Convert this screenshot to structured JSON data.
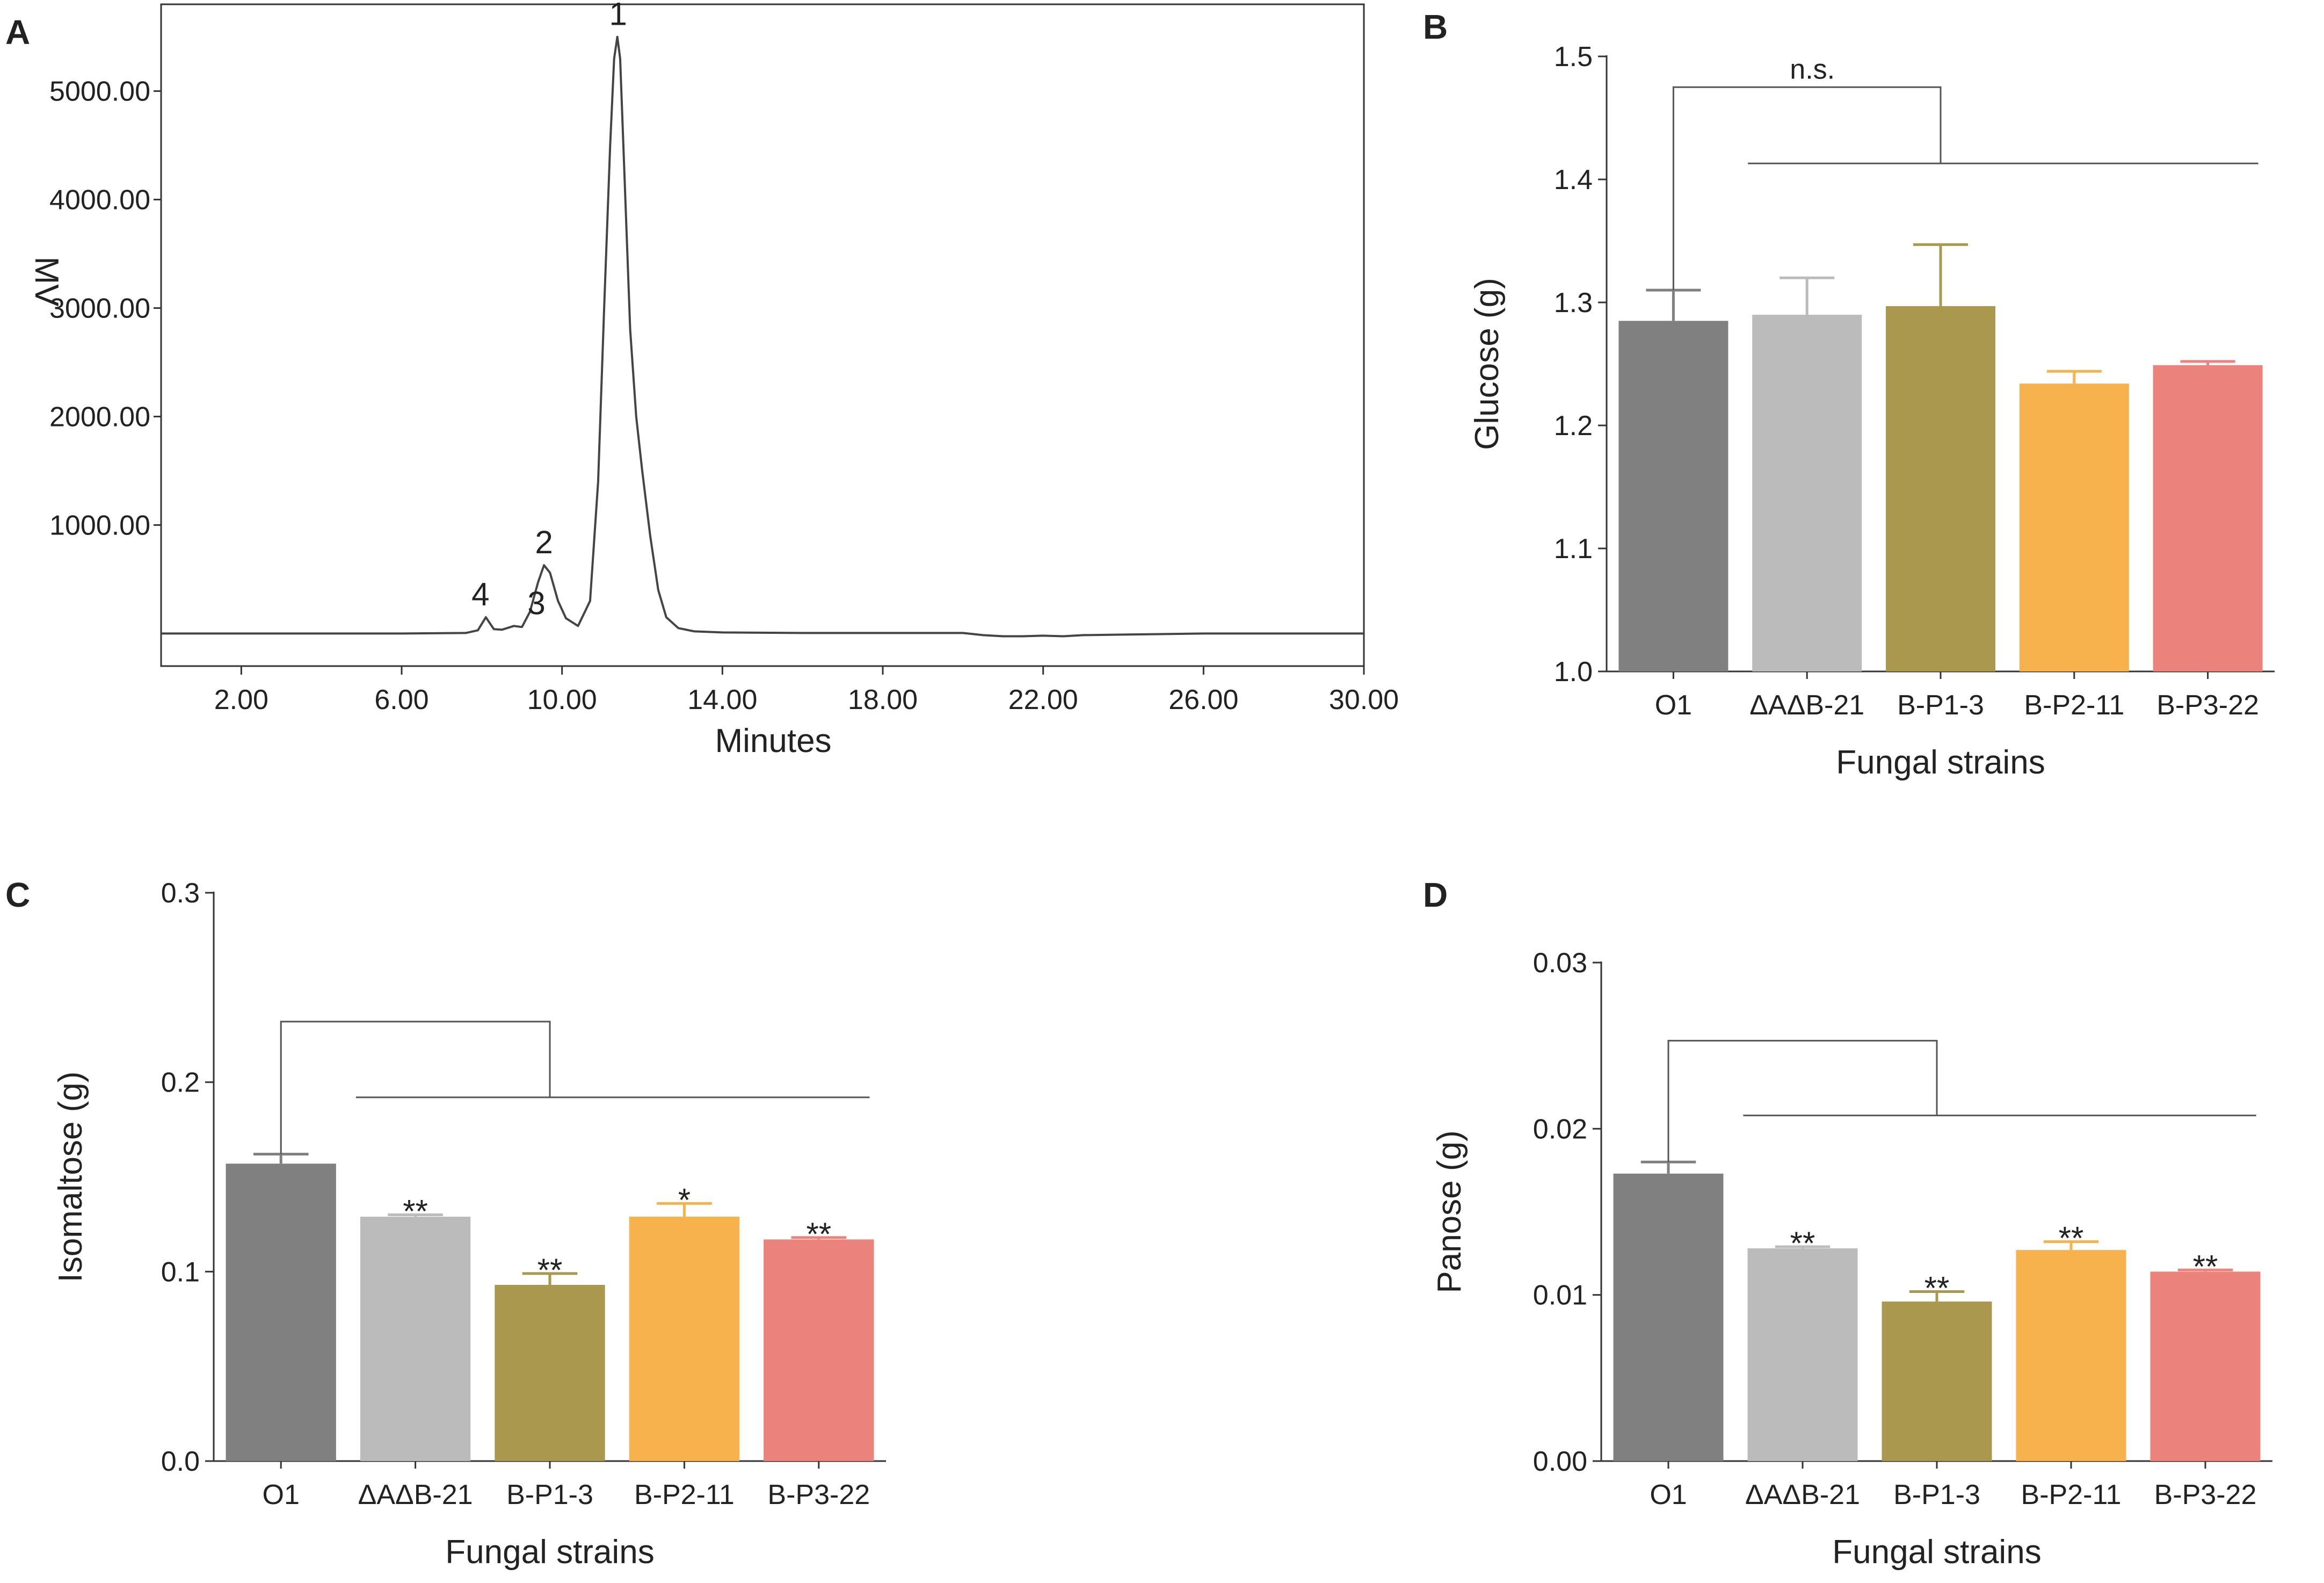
{
  "panel_labels": {
    "a": "A",
    "b": "B",
    "c": "C",
    "d": "D"
  },
  "colors": {
    "axis": "#333333",
    "trace": "#444444",
    "annotation": "#555555"
  },
  "chart_data": [
    {
      "panel": "A",
      "type": "line",
      "title": "",
      "xlabel": "Minutes",
      "ylabel": "MV",
      "xlim": [
        0,
        30
      ],
      "ylim": [
        -300,
        5800
      ],
      "xticks": [
        "2.00",
        "6.00",
        "10.00",
        "14.00",
        "18.00",
        "22.00",
        "26.00",
        "30.00"
      ],
      "xtick_values": [
        2,
        6,
        10,
        14,
        18,
        22,
        26,
        30
      ],
      "yticks": [
        "1000.00",
        "2000.00",
        "3000.00",
        "4000.00",
        "5000.00"
      ],
      "ytick_values": [
        1000,
        2000,
        3000,
        4000,
        5000
      ],
      "series": [
        {
          "name": "chromatogram",
          "x": [
            0.0,
            6.0,
            7.6,
            7.9,
            8.1,
            8.3,
            8.5,
            8.8,
            9.0,
            9.2,
            9.4,
            9.55,
            9.7,
            9.9,
            10.1,
            10.4,
            10.7,
            10.9,
            11.05,
            11.2,
            11.3,
            11.38,
            11.45,
            11.55,
            11.7,
            11.85,
            12.0,
            12.2,
            12.4,
            12.6,
            12.9,
            13.3,
            14.0,
            16.0,
            18.0,
            20.0,
            20.5,
            21.0,
            21.5,
            22.0,
            22.5,
            23.0,
            24.0,
            26.0,
            30.0
          ],
          "y": [
            0,
            0,
            5,
            30,
            150,
            40,
            35,
            70,
            60,
            200,
            470,
            630,
            560,
            300,
            140,
            70,
            300,
            1400,
            3000,
            4500,
            5300,
            5500,
            5300,
            4300,
            2800,
            2000,
            1500,
            900,
            400,
            150,
            50,
            20,
            10,
            5,
            5,
            5,
            -15,
            -25,
            -25,
            -20,
            -25,
            -15,
            -10,
            0,
            0
          ]
        }
      ],
      "peaks": [
        {
          "label": "1",
          "x": 11.4,
          "y": 5500
        },
        {
          "label": "2",
          "x": 9.55,
          "y": 630
        },
        {
          "label": "3",
          "x": 8.8,
          "y": 70
        },
        {
          "label": "4",
          "x": 8.1,
          "y": 150
        }
      ]
    },
    {
      "panel": "B",
      "type": "bar",
      "title": "",
      "xlabel": "Fungal strains",
      "ylabel": "Glucose (g)",
      "ylim": [
        1.0,
        1.5
      ],
      "yticks": [
        "1.0",
        "1.1",
        "1.2",
        "1.3",
        "1.4",
        "1.5"
      ],
      "ytick_values": [
        1.0,
        1.1,
        1.2,
        1.3,
        1.4,
        1.5
      ],
      "categories": [
        "O1",
        "ΔAΔB-21",
        "B-P1-3",
        "B-P2-11",
        "B-P3-22"
      ],
      "values": [
        1.285,
        1.29,
        1.297,
        1.234,
        1.249
      ],
      "errors": [
        0.025,
        0.03,
        0.05,
        0.01,
        0.003
      ],
      "colors": [
        "#808080",
        "#bbbbbc",
        "#ab984f",
        "#f6b24c",
        "#ec827c"
      ],
      "significance": [
        "",
        "",
        "",
        "",
        ""
      ],
      "bracket": {
        "label": "n.s.",
        "top": 1.475,
        "line": 1.413
      }
    },
    {
      "panel": "C",
      "type": "bar",
      "title": "",
      "xlabel": "Fungal strains",
      "ylabel": "Isomaltose (g)",
      "ylim": [
        0.0,
        0.3
      ],
      "yticks": [
        "0.0",
        "0.1",
        "0.2",
        "0.3"
      ],
      "ytick_values": [
        0.0,
        0.1,
        0.2,
        0.3
      ],
      "categories": [
        "O1",
        "ΔAΔB-21",
        "B-P1-3",
        "B-P2-11",
        "B-P3-22"
      ],
      "values": [
        0.157,
        0.129,
        0.093,
        0.129,
        0.117
      ],
      "errors": [
        0.005,
        0.001,
        0.006,
        0.007,
        0.001
      ],
      "colors": [
        "#808080",
        "#bbbbbc",
        "#ab984f",
        "#f6b24c",
        "#ec827c"
      ],
      "significance": [
        "",
        "**",
        "**",
        "*",
        "**"
      ],
      "bracket": {
        "label": "",
        "top": 0.232,
        "line": 0.192
      }
    },
    {
      "panel": "D",
      "type": "bar",
      "title": "",
      "xlabel": "Fungal strains",
      "ylabel": "Panose (g)",
      "ylim": [
        0.0,
        0.03
      ],
      "yticks": [
        "0.00",
        "0.01",
        "0.02",
        "0.03"
      ],
      "ytick_values": [
        0.0,
        0.01,
        0.02,
        0.03
      ],
      "categories": [
        "O1",
        "ΔAΔB-21",
        "B-P1-3",
        "B-P2-11",
        "B-P3-22"
      ],
      "values": [
        0.0173,
        0.0128,
        0.0096,
        0.0127,
        0.0114
      ],
      "errors": [
        0.0007,
        0.0001,
        0.0006,
        0.0005,
        0.0001
      ],
      "colors": [
        "#808080",
        "#bbbbbc",
        "#ab984f",
        "#f6b24c",
        "#ec827c"
      ],
      "significance": [
        "",
        "**",
        "**",
        "**",
        "**"
      ],
      "bracket": {
        "label": "",
        "top": 0.0253,
        "line": 0.0208
      }
    }
  ]
}
